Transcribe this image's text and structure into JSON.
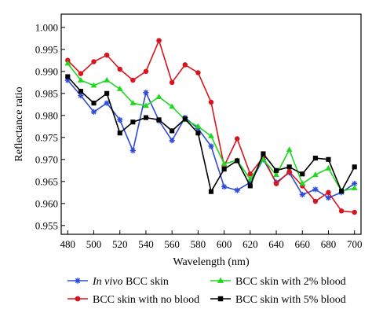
{
  "chart_data": {
    "type": "line",
    "title": "",
    "xlabel": "Wavelength (nm)",
    "ylabel": "Reflectance ratio",
    "xlim": [
      475,
      705
    ],
    "ylim": [
      0.953,
      1.003
    ],
    "xticks": [
      480,
      500,
      520,
      540,
      560,
      580,
      600,
      620,
      640,
      660,
      680,
      700
    ],
    "yticks": [
      0.955,
      0.96,
      0.965,
      0.97,
      0.975,
      0.98,
      0.985,
      0.99,
      0.995,
      1.0
    ],
    "ytick_labels": [
      "0.955",
      "0.960",
      "0.965",
      "0.970",
      "0.975",
      "0.980",
      "0.985",
      "0.990",
      "0.995",
      "1.000"
    ],
    "grid": false,
    "legend_position": "bottom",
    "x": [
      480,
      490,
      500,
      510,
      520,
      530,
      540,
      550,
      560,
      570,
      580,
      590,
      600,
      610,
      620,
      630,
      640,
      650,
      660,
      670,
      680,
      690,
      700
    ],
    "series": [
      {
        "name": "In vivo BCC skin",
        "name_italic": "In vivo",
        "name_rest": " BCC skin",
        "color": "#2f4bd8",
        "marker": "star",
        "values": [
          0.988,
          0.9845,
          0.9808,
          0.9828,
          0.979,
          0.972,
          0.9852,
          0.9788,
          0.9743,
          0.9795,
          0.977,
          0.973,
          0.9638,
          0.963,
          0.9648,
          0.97,
          0.9648,
          0.967,
          0.962,
          0.9632,
          0.9613,
          0.9625,
          0.9645
        ]
      },
      {
        "name": "BCC skin with no blood",
        "color": "#d8151e",
        "marker": "circle",
        "values": [
          0.9925,
          0.9895,
          0.9922,
          0.9937,
          0.9905,
          0.988,
          0.99,
          0.997,
          0.9875,
          0.9915,
          0.9897,
          0.983,
          0.9685,
          0.9747,
          0.9667,
          0.9705,
          0.9645,
          0.9672,
          0.964,
          0.9605,
          0.9625,
          0.9583,
          0.958
        ]
      },
      {
        "name": "BCC skin with 2% blood",
        "color": "#1ed81e",
        "marker": "triangle",
        "values": [
          0.9918,
          0.988,
          0.9868,
          0.988,
          0.986,
          0.9828,
          0.9822,
          0.9842,
          0.982,
          0.979,
          0.9775,
          0.9753,
          0.969,
          0.9698,
          0.9655,
          0.97,
          0.9665,
          0.9722,
          0.9645,
          0.9665,
          0.968,
          0.9628,
          0.9635
        ]
      },
      {
        "name": "BCC skin with 5% blood",
        "color": "#000000",
        "marker": "square",
        "values": [
          0.9888,
          0.9855,
          0.9828,
          0.985,
          0.976,
          0.9785,
          0.9795,
          0.979,
          0.9765,
          0.9792,
          0.976,
          0.9627,
          0.9678,
          0.9697,
          0.964,
          0.9713,
          0.9675,
          0.9683,
          0.9667,
          0.9703,
          0.97,
          0.9628,
          0.9683
        ]
      }
    ]
  }
}
